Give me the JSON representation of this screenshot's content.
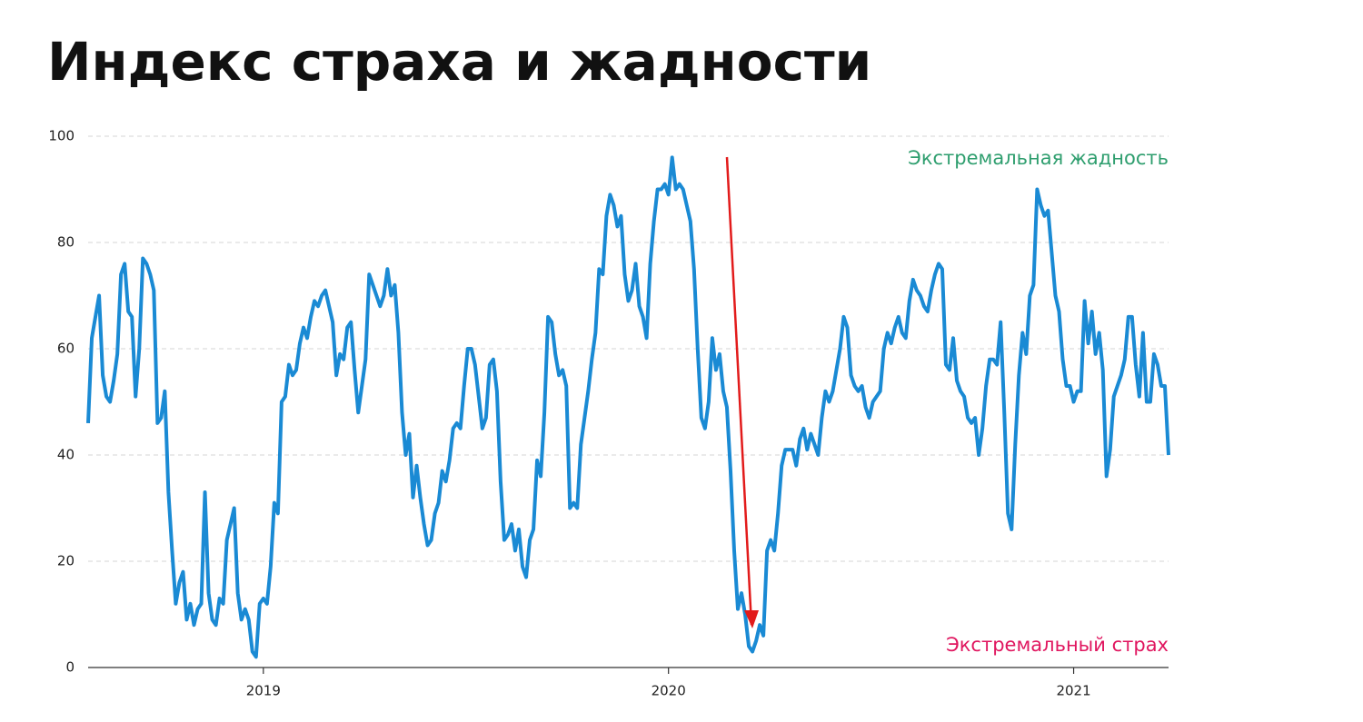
{
  "chart_data": {
    "type": "line",
    "title": "Индекс страха и жадности",
    "annotations": [
      "Экстремальная жадность",
      "Экстремальный страх"
    ],
    "categories": [
      null,
      null,
      null,
      null,
      null,
      null,
      null,
      null,
      null,
      null,
      null,
      null,
      null,
      null,
      null,
      null,
      null,
      null,
      null,
      null,
      null,
      null,
      null,
      null,
      null,
      null,
      null,
      null,
      null,
      null,
      null,
      null,
      null,
      null,
      null,
      null,
      null,
      null,
      null,
      null,
      null,
      null,
      null,
      null,
      null,
      null,
      null,
      null,
      "2019",
      null,
      null,
      null,
      null,
      null,
      null,
      null,
      null,
      null,
      null,
      null,
      null,
      null,
      null,
      null,
      null,
      null,
      null,
      null,
      null,
      null,
      null,
      null,
      null,
      null,
      null,
      null,
      null,
      null,
      null,
      null,
      null,
      null,
      null,
      null,
      null,
      null,
      null,
      null,
      null,
      null,
      null,
      null,
      null,
      null,
      null,
      null,
      null,
      null,
      null,
      null,
      null,
      null,
      null,
      null,
      null,
      null,
      null,
      null,
      null,
      null,
      null,
      null,
      null,
      null,
      null,
      null,
      null,
      null,
      null,
      null,
      null,
      null,
      null,
      null,
      null,
      null,
      null,
      null,
      null,
      null,
      null,
      null,
      null,
      null,
      null,
      null,
      null,
      null,
      null,
      null,
      null,
      null,
      null,
      null,
      null,
      null,
      null,
      null,
      null,
      null,
      null,
      null,
      null,
      null,
      null,
      null,
      null,
      null,
      null,
      "2020",
      null,
      null,
      null,
      null,
      null,
      null,
      null,
      null,
      null,
      null,
      null,
      null,
      null,
      null,
      null,
      null,
      null,
      null,
      null,
      null,
      null,
      null,
      null,
      null,
      null,
      null,
      null,
      null,
      null,
      null,
      null,
      null,
      null,
      null,
      null,
      null,
      null,
      null,
      null,
      null,
      null,
      null,
      null,
      null,
      null,
      null,
      null,
      null,
      null,
      null,
      null,
      null,
      null,
      null,
      null,
      null,
      null,
      null,
      null,
      null,
      null,
      null,
      null,
      null,
      null,
      null,
      null,
      null,
      null,
      null,
      null,
      null,
      null,
      null,
      null,
      null,
      null,
      null,
      null,
      null,
      null,
      null,
      null,
      null,
      null,
      null,
      null,
      null,
      null,
      null,
      null,
      null,
      null,
      null,
      null,
      null,
      null,
      null,
      null,
      null,
      null,
      null,
      null,
      null,
      null,
      null,
      null,
      null,
      null,
      null,
      "2021",
      null,
      null,
      null,
      null,
      null,
      null,
      null,
      null,
      null,
      null,
      null,
      null,
      null,
      null,
      null,
      null,
      null,
      null,
      null,
      null,
      null,
      null,
      null,
      null,
      null,
      null
    ],
    "values": [
      46,
      62,
      66,
      70,
      55,
      51,
      50,
      54,
      59,
      74,
      76,
      67,
      66,
      51,
      60,
      77,
      76,
      74,
      71,
      46,
      47,
      52,
      33,
      22,
      12,
      16,
      18,
      9,
      12,
      8,
      11,
      12,
      33,
      14,
      9,
      8,
      13,
      12,
      24,
      27,
      30,
      14,
      9,
      11,
      9,
      3,
      2,
      12,
      13,
      12,
      19,
      31,
      29,
      50,
      51,
      57,
      55,
      56,
      61,
      64,
      62,
      66,
      69,
      68,
      70,
      71,
      68,
      65,
      55,
      59,
      58,
      64,
      65,
      56,
      48,
      53,
      58,
      74,
      72,
      70,
      68,
      70,
      75,
      70,
      72,
      63,
      48,
      40,
      44,
      32,
      38,
      32,
      27,
      23,
      24,
      29,
      31,
      37,
      35,
      39,
      45,
      46,
      45,
      53,
      60,
      60,
      57,
      51,
      45,
      47,
      57,
      58,
      52,
      35,
      24,
      25,
      27,
      22,
      26,
      19,
      17,
      24,
      26,
      39,
      36,
      48,
      66,
      65,
      59,
      55,
      56,
      53,
      30,
      31,
      30,
      42,
      47,
      52,
      58,
      63,
      75,
      74,
      85,
      89,
      87,
      83,
      85,
      74,
      69,
      71,
      76,
      68,
      66,
      62,
      76,
      84,
      90,
      90,
      91,
      89,
      96,
      90,
      91,
      90,
      87,
      84,
      75,
      60,
      47,
      45,
      50,
      62,
      56,
      59,
      52,
      49,
      37,
      22,
      11,
      14,
      10,
      4,
      3,
      5,
      8,
      6,
      22,
      24,
      22,
      29,
      38,
      41,
      41,
      41,
      38,
      43,
      45,
      41,
      44,
      42,
      40,
      47,
      52,
      50,
      52,
      56,
      60,
      66,
      64,
      55,
      53,
      52,
      53,
      49,
      47,
      50,
      51,
      52,
      60,
      63,
      61,
      64,
      66,
      63,
      62,
      69,
      73,
      71,
      70,
      68,
      67,
      71,
      74,
      76,
      75,
      57,
      56,
      62,
      54,
      52,
      51,
      47,
      46,
      47,
      40,
      45,
      53,
      58,
      58,
      57,
      65,
      48,
      29,
      26,
      42,
      55,
      63,
      59,
      70,
      72,
      90,
      87,
      85,
      86,
      78,
      70,
      67,
      58,
      53,
      53,
      50,
      52,
      52,
      69,
      61,
      67,
      59,
      63,
      56,
      36,
      41,
      51,
      53,
      55,
      58,
      66,
      66,
      57,
      51,
      63,
      50,
      50,
      59,
      57,
      53,
      53,
      40
    ],
    "color": "#1a8ad4",
    "ylim": [
      0,
      100
    ],
    "yticks": [
      0,
      20,
      40,
      60,
      80,
      100
    ],
    "grid": true
  }
}
